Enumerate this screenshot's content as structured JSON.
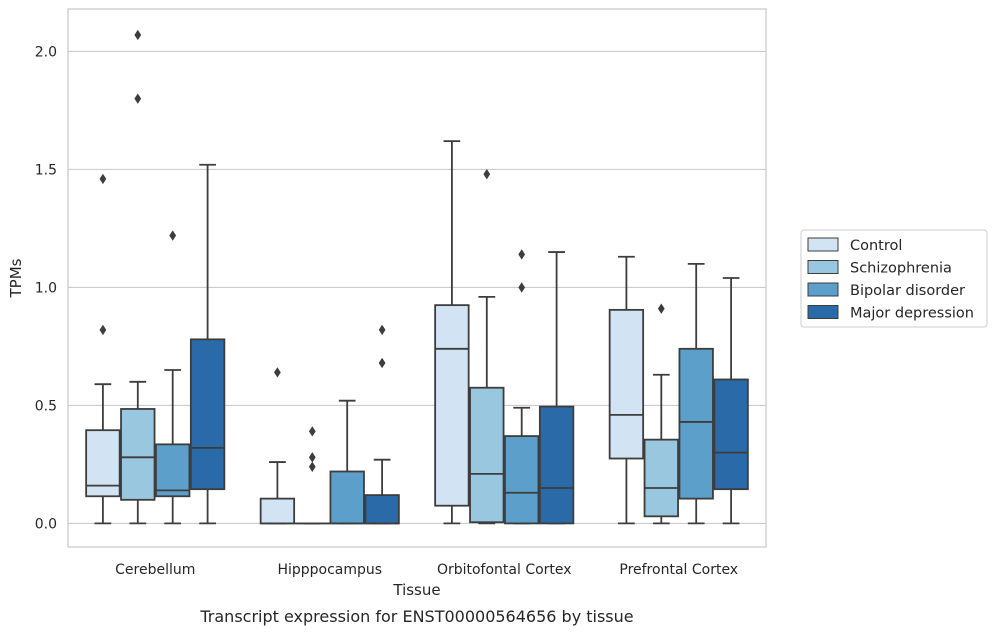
{
  "caption": "Transcript expression for ENST00000564656 by tissue",
  "chart_data": {
    "type": "box",
    "xlabel": "Tissue",
    "ylabel": "TPMs",
    "ylim": [
      -0.1,
      2.18
    ],
    "yticks": [
      0.0,
      0.5,
      1.0,
      1.5,
      2.0
    ],
    "ytick_labels": [
      "0.0",
      "0.5",
      "1.0",
      "1.5",
      "2.0"
    ],
    "grid": "horizontal",
    "legend_position": "right",
    "categories": [
      "Cerebellum",
      "Hipppocampus",
      "Orbitofontal Cortex",
      "Prefrontal Cortex"
    ],
    "series": [
      {
        "name": "Control",
        "color": "#d2e3f3",
        "boxes": [
          {
            "whislo": 0.0,
            "q1": 0.115,
            "med": 0.16,
            "q3": 0.395,
            "whishi": 0.59,
            "fliers": [
              0.82,
              1.46
            ]
          },
          {
            "whislo": 0.0,
            "q1": 0.0,
            "med": 0.0,
            "q3": 0.105,
            "whishi": 0.26,
            "fliers": [
              0.64
            ]
          },
          {
            "whislo": 0.0,
            "q1": 0.075,
            "med": 0.74,
            "q3": 0.925,
            "whishi": 1.62,
            "fliers": []
          },
          {
            "whislo": 0.0,
            "q1": 0.275,
            "med": 0.46,
            "q3": 0.905,
            "whishi": 1.13,
            "fliers": []
          }
        ]
      },
      {
        "name": "Schizophrenia",
        "color": "#9ac7e0",
        "boxes": [
          {
            "whislo": 0.0,
            "q1": 0.1,
            "med": 0.28,
            "q3": 0.485,
            "whishi": 0.6,
            "fliers": [
              1.8,
              2.07
            ]
          },
          {
            "whislo": 0.0,
            "q1": 0.0,
            "med": 0.0,
            "q3": 0.0,
            "whishi": 0.0,
            "fliers": [
              0.24,
              0.28,
              0.39
            ]
          },
          {
            "whislo": 0.0,
            "q1": 0.005,
            "med": 0.21,
            "q3": 0.575,
            "whishi": 0.96,
            "fliers": [
              1.48
            ]
          },
          {
            "whislo": 0.0,
            "q1": 0.03,
            "med": 0.15,
            "q3": 0.355,
            "whishi": 0.63,
            "fliers": [
              0.91
            ]
          }
        ]
      },
      {
        "name": "Bipolar disorder",
        "color": "#5b9fca",
        "boxes": [
          {
            "whislo": 0.0,
            "q1": 0.115,
            "med": 0.14,
            "q3": 0.335,
            "whishi": 0.65,
            "fliers": [
              1.22
            ]
          },
          {
            "whislo": 0.0,
            "q1": 0.0,
            "med": 0.0,
            "q3": 0.22,
            "whishi": 0.52,
            "fliers": []
          },
          {
            "whislo": 0.0,
            "q1": 0.0,
            "med": 0.13,
            "q3": 0.37,
            "whishi": 0.49,
            "fliers": [
              1.0,
              1.14
            ]
          },
          {
            "whislo": 0.0,
            "q1": 0.105,
            "med": 0.43,
            "q3": 0.74,
            "whishi": 1.1,
            "fliers": []
          }
        ]
      },
      {
        "name": "Major depression",
        "color": "#2a6aa8",
        "boxes": [
          {
            "whislo": 0.0,
            "q1": 0.145,
            "med": 0.32,
            "q3": 0.78,
            "whishi": 1.52,
            "fliers": []
          },
          {
            "whislo": 0.0,
            "q1": 0.0,
            "med": 0.0,
            "q3": 0.12,
            "whishi": 0.27,
            "fliers": [
              0.68,
              0.82
            ]
          },
          {
            "whislo": 0.0,
            "q1": 0.0,
            "med": 0.15,
            "q3": 0.495,
            "whishi": 1.15,
            "fliers": []
          },
          {
            "whislo": 0.0,
            "q1": 0.145,
            "med": 0.3,
            "q3": 0.61,
            "whishi": 1.04,
            "fliers": []
          }
        ]
      }
    ]
  }
}
